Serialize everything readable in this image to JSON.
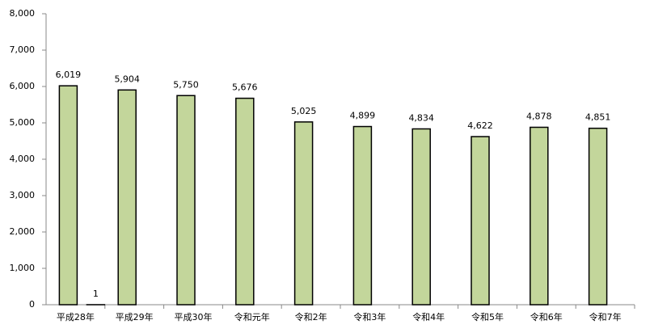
{
  "chart_data": {
    "type": "bar",
    "categories": [
      "平成28年",
      "平成29年",
      "平成30年",
      "令和元年",
      "令和2年",
      "令和3年",
      "令和4年",
      "令和5年",
      "令和6年",
      "令和7年"
    ],
    "series": [
      {
        "color": "#c3d69b",
        "values": [
          6019,
          5904,
          5750,
          5676,
          5025,
          4899,
          4834,
          4622,
          4878,
          4851
        ],
        "value_labels": [
          "6,019",
          "5,904",
          "5,750",
          "5,676",
          "5,025",
          "4,899",
          "4,834",
          "4,622",
          "4,878",
          "4,851"
        ]
      },
      {
        "color": "#c3d69b",
        "values": [
          1,
          null,
          null,
          null,
          null,
          null,
          null,
          null,
          null,
          null
        ]
      }
    ],
    "ylim": [
      0,
      8000
    ],
    "yticks": [
      0,
      {
        "value": 1000,
        "label": "1,000"
      },
      {
        "value": 2000,
        "label": "2,000"
      },
      {
        "value": 3000,
        "label": "3,000"
      },
      {
        "value": 4000,
        "label": "4,000"
      },
      {
        "value": 5000,
        "label": "5,000"
      },
      {
        "value": 6000,
        "label": "6,000"
      },
      {
        "value": 7000,
        "label": "7,000"
      },
      {
        "value": 8000,
        "label": "8,000"
      }
    ]
  }
}
